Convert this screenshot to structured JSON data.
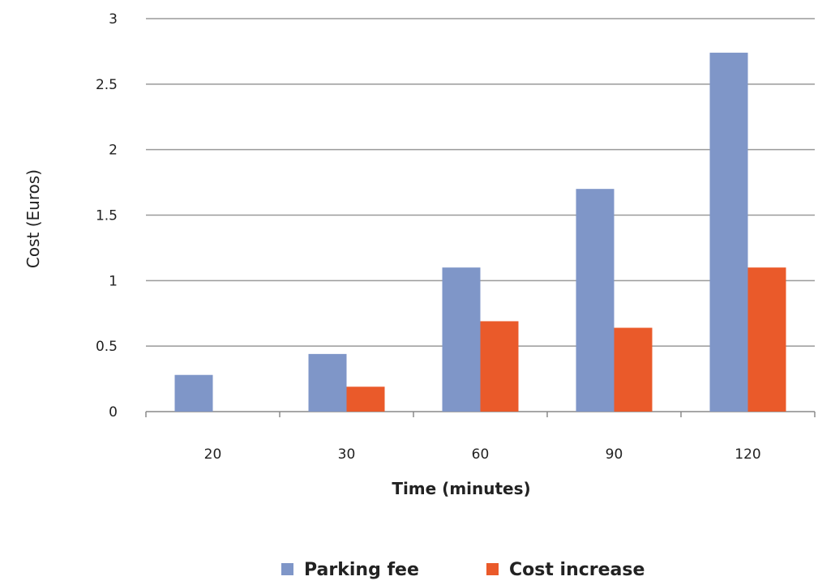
{
  "chart_data": {
    "type": "bar",
    "title": "",
    "xlabel": "Time (minutes)",
    "ylabel": "Cost (Euros)",
    "categories": [
      "20",
      "30",
      "60",
      "90",
      "120"
    ],
    "series": [
      {
        "name": "Parking fee",
        "color": "#7f96c8",
        "values": [
          0.28,
          0.44,
          1.1,
          1.7,
          2.74
        ]
      },
      {
        "name": "Cost increase",
        "color": "#ea5a2a",
        "values": [
          0,
          0.19,
          0.69,
          0.64,
          1.1
        ]
      }
    ],
    "ylim": [
      0,
      3
    ],
    "yticks": [
      "0",
      "0.5",
      "1",
      "1.5",
      "2",
      "2.5",
      "3"
    ],
    "grid": true,
    "legend_position": "bottom"
  }
}
